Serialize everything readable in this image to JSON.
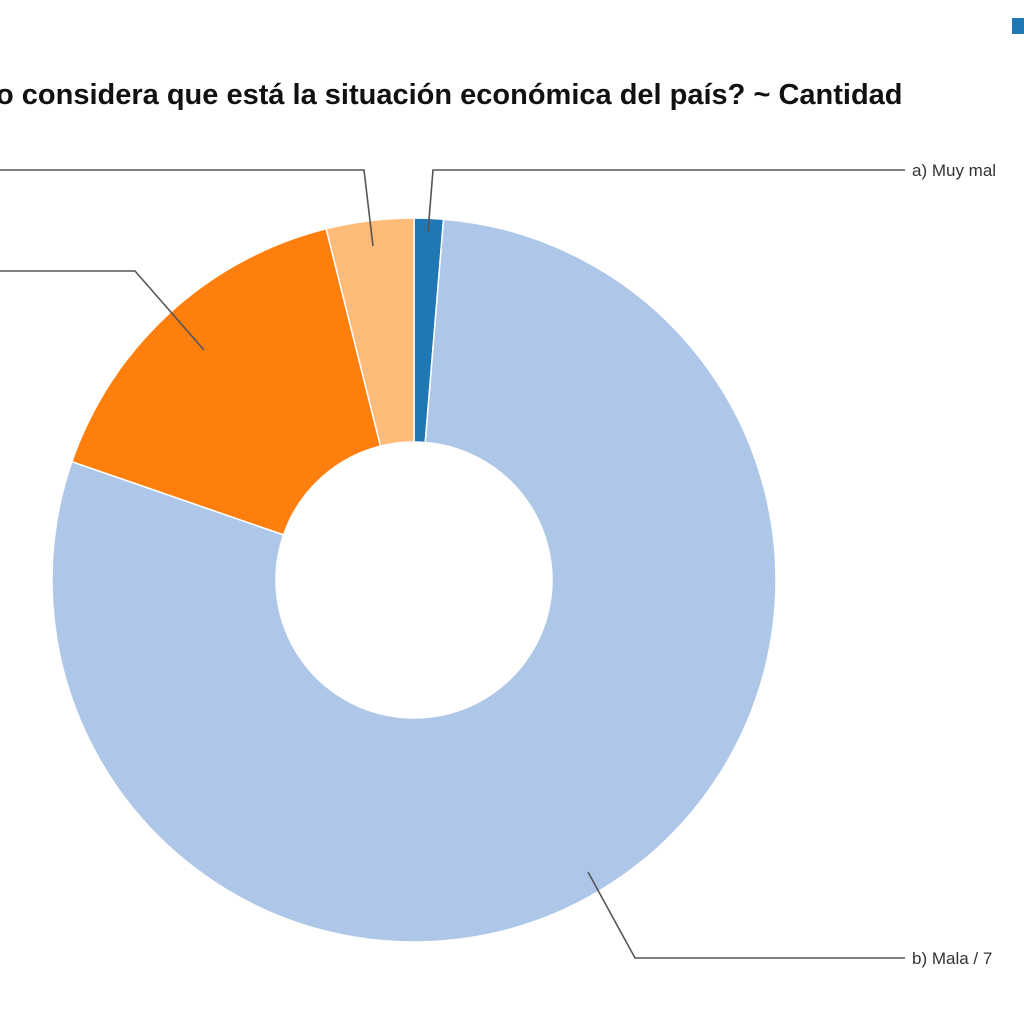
{
  "chart_data": {
    "type": "pie",
    "title": "o considera que está la situación económica del país? ~ Cantidad",
    "donut": true,
    "legend_position": "top-right",
    "slices": [
      {
        "label": "a) Muy mal",
        "value": 1.3,
        "color": "#1f77b4"
      },
      {
        "label": "b) Mala / 7",
        "value": 79.0,
        "color": "#aec7e8"
      },
      {
        "label": "",
        "value": 15.8,
        "color": "#ff7f0e"
      },
      {
        "label": "",
        "value": 3.9,
        "color": "#ffbb78"
      }
    ]
  }
}
